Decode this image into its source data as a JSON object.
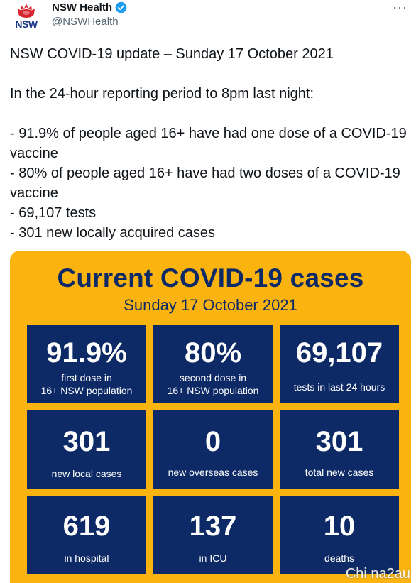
{
  "account": {
    "name": "NSW Health",
    "handle": "@NSWHealth",
    "logo_text": "NSW",
    "more_label": "···"
  },
  "tweet": {
    "lines": [
      "NSW COVID-19 update – Sunday 17 October 2021",
      "",
      "In the 24-hour reporting period to 8pm last night:",
      "",
      "- 91.9% of people aged 16+ have had one dose of a COVID-19 vaccine",
      "- 80% of people aged 16+ have had two doses of a COVID-19 vaccine",
      "-  69,107 tests",
      "- 301 new locally acquired cases"
    ]
  },
  "card": {
    "title": "Current COVID-19 cases",
    "date": "Sunday 17 October 2021",
    "tiles": [
      {
        "value": "91.9%",
        "label_1": "first dose in",
        "label_2": "16+ NSW population"
      },
      {
        "value": "80%",
        "label_1": "second dose in",
        "label_2": "16+ NSW population"
      },
      {
        "value": "69,107",
        "label_1": "tests in last 24 hours",
        "label_2": ""
      },
      {
        "value": "301",
        "label_1": "new local cases",
        "label_2": ""
      },
      {
        "value": "0",
        "label_1": "new overseas cases",
        "label_2": ""
      },
      {
        "value": "301",
        "label_1": "total new cases",
        "label_2": ""
      },
      {
        "value": "619",
        "label_1": "in hospital",
        "label_2": ""
      },
      {
        "value": "137",
        "label_1": "in ICU",
        "label_2": ""
      },
      {
        "value": "10",
        "label_1": "deaths",
        "label_2": ""
      }
    ]
  },
  "watermark": "Chi na2au",
  "colors": {
    "card_bg": "#fbb40f",
    "tile_bg": "#0d2a66",
    "verified": "#1d9bf0",
    "logo_red": "#d7262f"
  }
}
